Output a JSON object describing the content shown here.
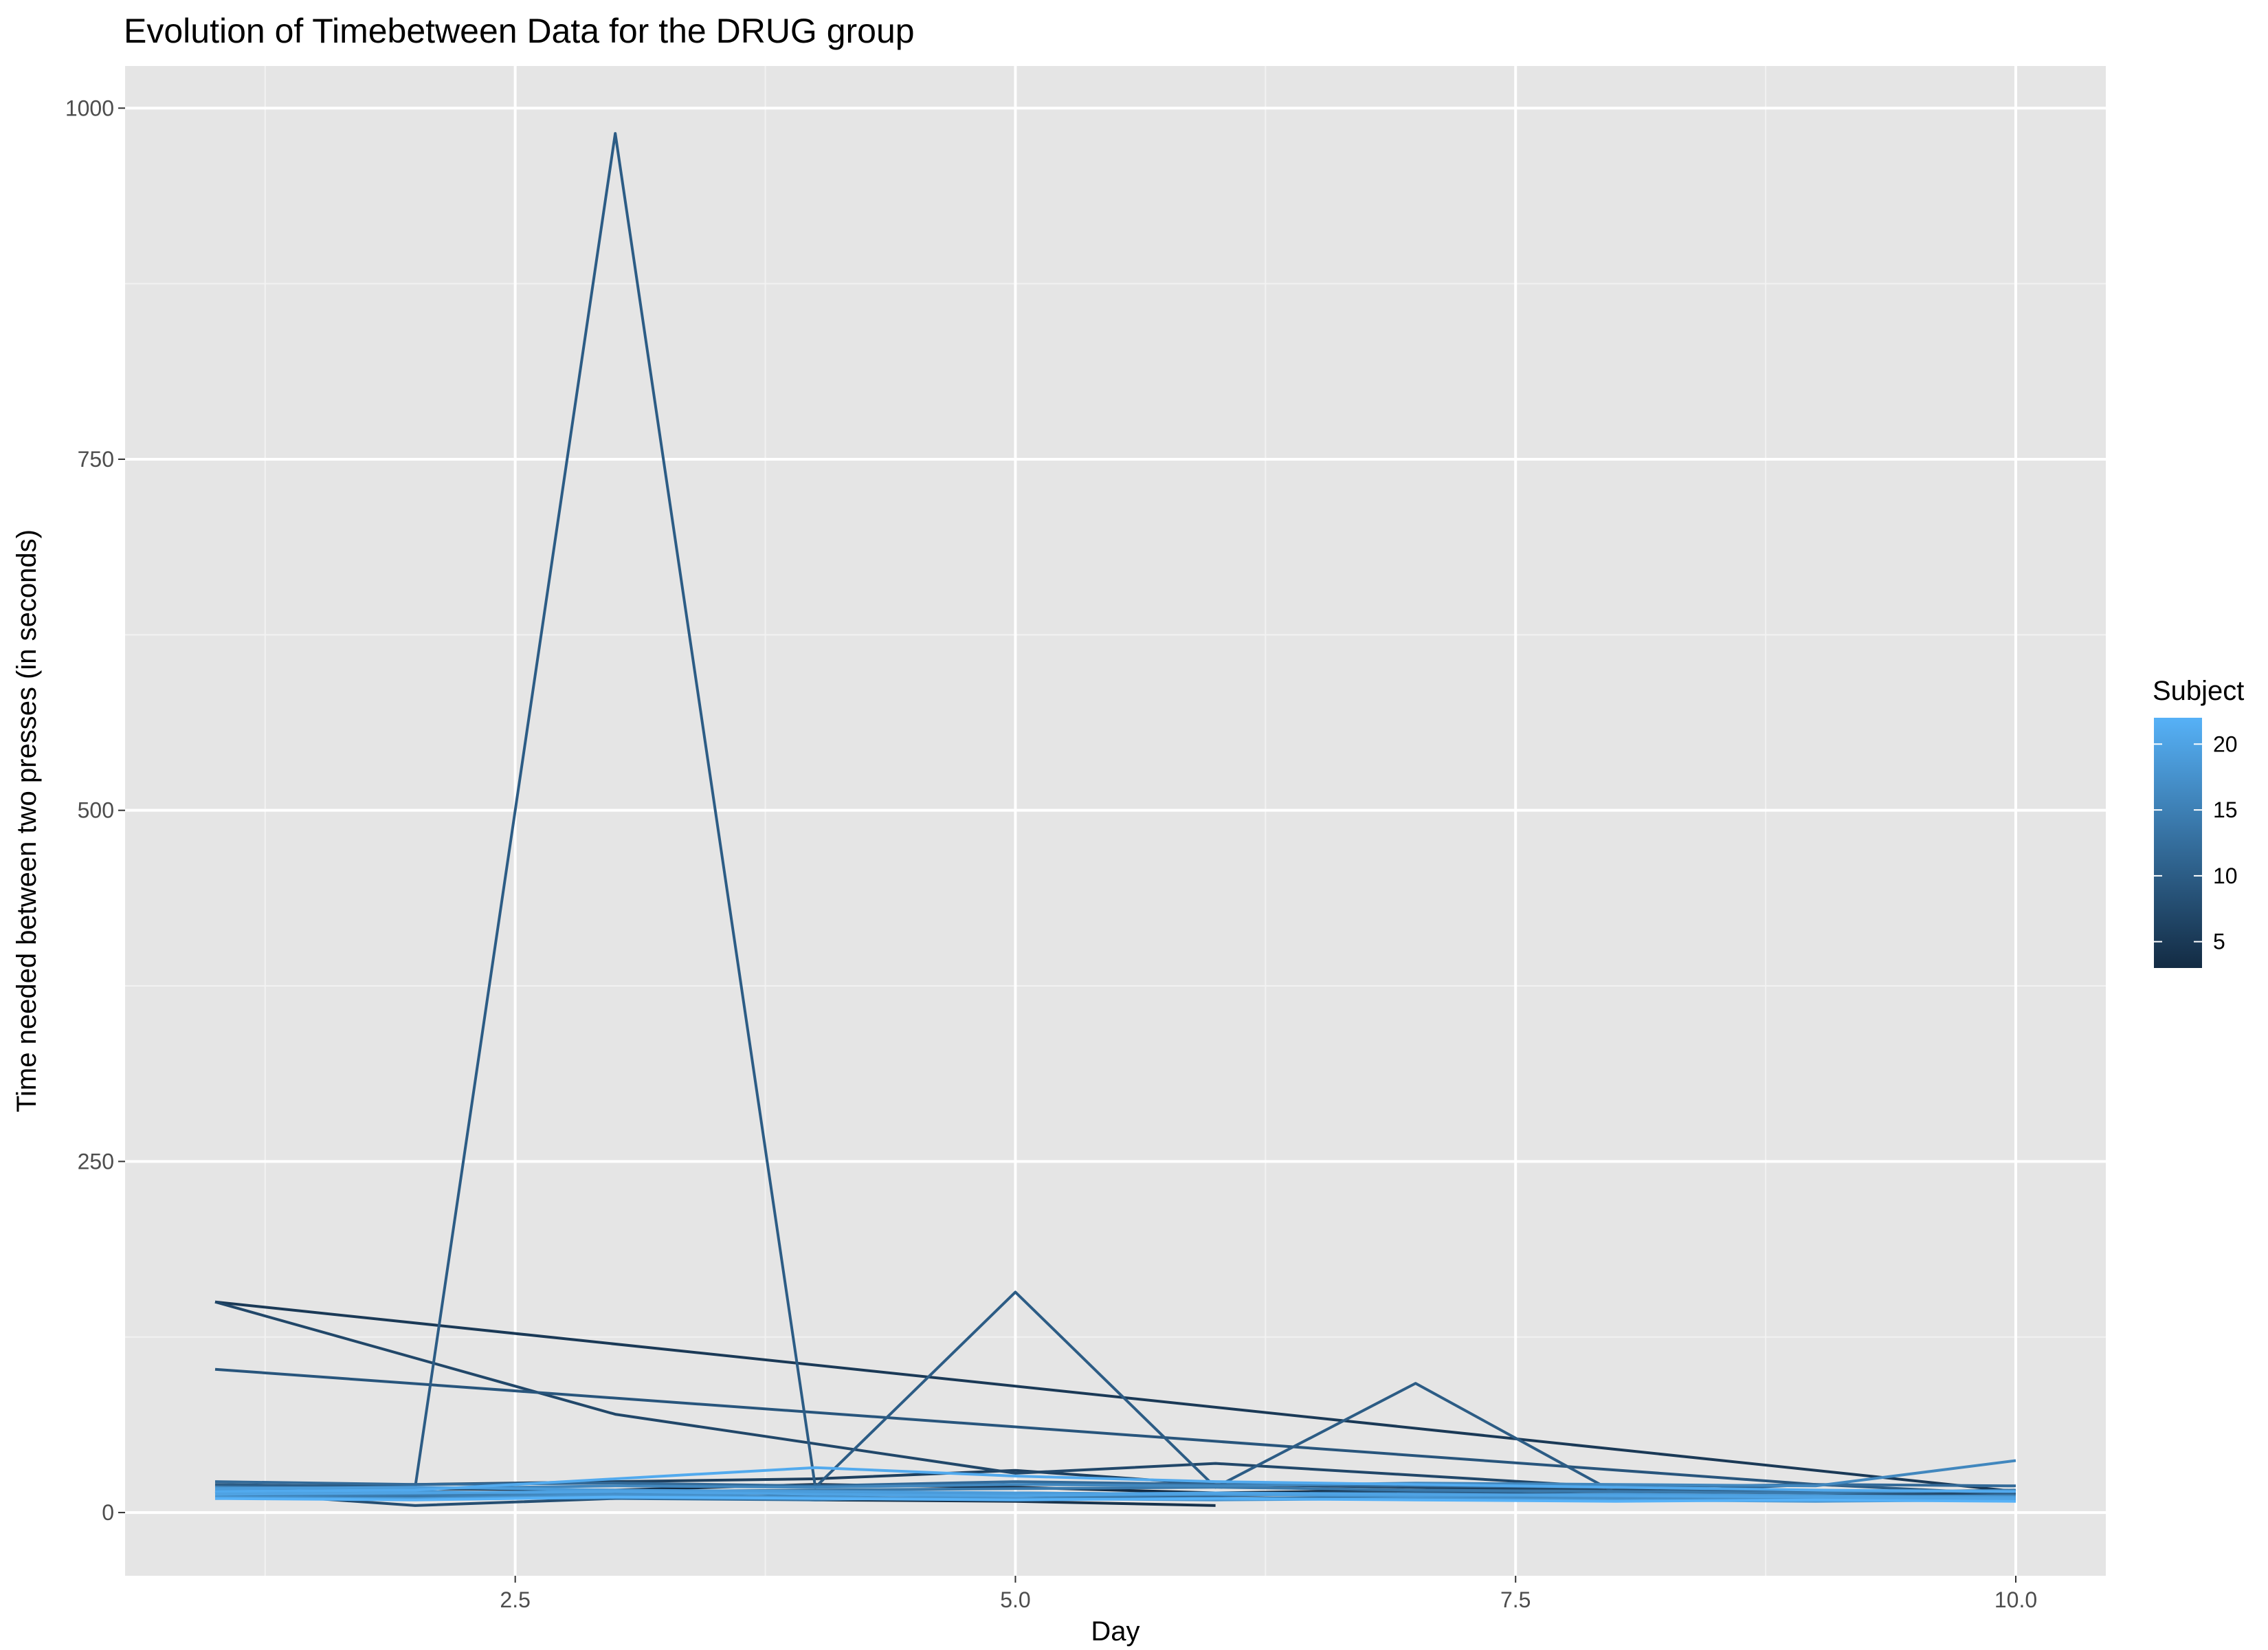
{
  "chart_data": {
    "type": "line",
    "title": "Evolution of Timebetween Data for the DRUG group",
    "xlabel": "Day",
    "ylabel": "Time needed between two presses (in seconds)",
    "xlim": [
      0.55,
      10.45
    ],
    "ylim": [
      -45,
      1030
    ],
    "x_ticks": [
      2.5,
      5.0,
      7.5,
      10.0
    ],
    "x_tick_labels": [
      "2.5",
      "5.0",
      "7.5",
      "10.0"
    ],
    "y_ticks": [
      0,
      250,
      500,
      750,
      1000
    ],
    "y_tick_labels": [
      "0",
      "250",
      "500",
      "750",
      "1000"
    ],
    "grid": true,
    "legend": {
      "title": "Subject",
      "position": "right",
      "type": "colorbar",
      "range": [
        3,
        22
      ],
      "ticks": [
        5,
        10,
        15,
        20
      ],
      "tick_labels": [
        "5",
        "10",
        "15",
        "20"
      ],
      "color_low": "#132b43",
      "color_high": "#56b1f7"
    },
    "series": [
      {
        "subject": 3,
        "x": [
          1,
          2,
          3,
          4,
          5,
          6,
          7,
          8,
          9,
          10
        ],
        "y": [
          15,
          17,
          16,
          20,
          18,
          14,
          16,
          15,
          14,
          13
        ]
      },
      {
        "subject": 4,
        "x": [
          1,
          2,
          3,
          4,
          5,
          6
        ],
        "y": [
          12,
          11,
          13,
          9,
          8,
          5
        ]
      },
      {
        "subject": 5,
        "x": [
          1,
          10
        ],
        "y": [
          150,
          15
        ]
      },
      {
        "subject": 6,
        "x": [
          1,
          2,
          3,
          4,
          5,
          6,
          7,
          8,
          9,
          10
        ],
        "y": [
          18,
          20,
          22,
          24,
          30,
          20,
          18,
          16,
          15,
          14
        ]
      },
      {
        "subject": 7,
        "x": [
          1,
          3,
          5,
          6,
          8,
          10
        ],
        "y": [
          150,
          70,
          28,
          35,
          18,
          12
        ]
      },
      {
        "subject": 8,
        "x": [
          1,
          2,
          3,
          4,
          5,
          6,
          7,
          8,
          9,
          10
        ],
        "y": [
          15,
          5,
          10,
          12,
          14,
          13,
          15,
          16,
          14,
          12
        ]
      },
      {
        "subject": 9,
        "x": [
          1,
          9
        ],
        "y": [
          102,
          20
        ]
      },
      {
        "subject": 10,
        "x": [
          1,
          2,
          3,
          4,
          5,
          6,
          7,
          8,
          9,
          10
        ],
        "y": [
          20,
          18,
          982,
          18,
          157,
          18,
          92,
          14,
          20,
          13
        ]
      },
      {
        "subject": 11,
        "x": [
          1,
          2,
          3,
          4,
          5,
          6,
          7,
          8,
          9,
          10
        ],
        "y": [
          13,
          12,
          14,
          15,
          13,
          12,
          14,
          13,
          12,
          11
        ]
      },
      {
        "subject": 12,
        "x": [
          1,
          2,
          3,
          4,
          5,
          6,
          7,
          8,
          9,
          10
        ],
        "y": [
          22,
          20,
          21,
          19,
          22,
          20,
          19,
          18,
          20,
          19
        ]
      },
      {
        "subject": 13,
        "x": [
          1,
          2,
          3,
          4,
          5,
          6,
          7,
          8,
          9,
          10
        ],
        "y": [
          10,
          11,
          10,
          9,
          12,
          10,
          11,
          10,
          9,
          10
        ]
      },
      {
        "subject": 14,
        "x": [
          1,
          2,
          3,
          4,
          5,
          6,
          7,
          8,
          9,
          10
        ],
        "y": [
          16,
          14,
          15,
          16,
          17,
          18,
          16,
          15,
          14,
          16
        ]
      },
      {
        "subject": 15,
        "x": [
          1,
          2,
          3,
          4,
          5,
          6,
          7,
          8,
          9,
          10
        ],
        "y": [
          12,
          13,
          12,
          14,
          13,
          14,
          13,
          12,
          11,
          12
        ]
      },
      {
        "subject": 16,
        "x": [
          1,
          2,
          3,
          4,
          5,
          6,
          7,
          8,
          9,
          10
        ],
        "y": [
          18,
          17,
          19,
          18,
          20,
          19,
          21,
          20,
          19,
          37
        ]
      },
      {
        "subject": 17,
        "x": [
          1,
          2,
          3,
          4,
          5,
          6,
          7,
          8,
          9,
          10
        ],
        "y": [
          14,
          15,
          13,
          14,
          12,
          13,
          12,
          11,
          10,
          9
        ]
      },
      {
        "subject": 18,
        "x": [
          1,
          2,
          3,
          4,
          5,
          6,
          7,
          8,
          9,
          10
        ],
        "y": [
          11,
          10,
          12,
          11,
          10,
          9,
          10,
          9,
          8,
          9
        ]
      },
      {
        "subject": 19,
        "x": [
          1,
          2,
          3,
          4,
          5,
          6,
          7,
          8,
          9,
          10
        ],
        "y": [
          17,
          18,
          16,
          15,
          14,
          13,
          12,
          13,
          12,
          11
        ]
      },
      {
        "subject": 20,
        "x": [
          1,
          2,
          3,
          4,
          5,
          6,
          7,
          8,
          9,
          10
        ],
        "y": [
          13,
          14,
          15,
          13,
          12,
          14,
          13,
          12,
          11,
          10
        ]
      },
      {
        "subject": 21,
        "x": [
          1,
          2,
          3,
          4,
          5,
          6,
          7,
          8,
          9,
          10
        ],
        "y": [
          15,
          16,
          24,
          32,
          26,
          22,
          20,
          18,
          16,
          15
        ]
      },
      {
        "subject": 22,
        "x": [
          1,
          2,
          3,
          4,
          5,
          6,
          7,
          8,
          9,
          10
        ],
        "y": [
          10,
          9,
          11,
          10,
          9,
          10,
          9,
          8,
          9,
          8
        ]
      }
    ]
  }
}
